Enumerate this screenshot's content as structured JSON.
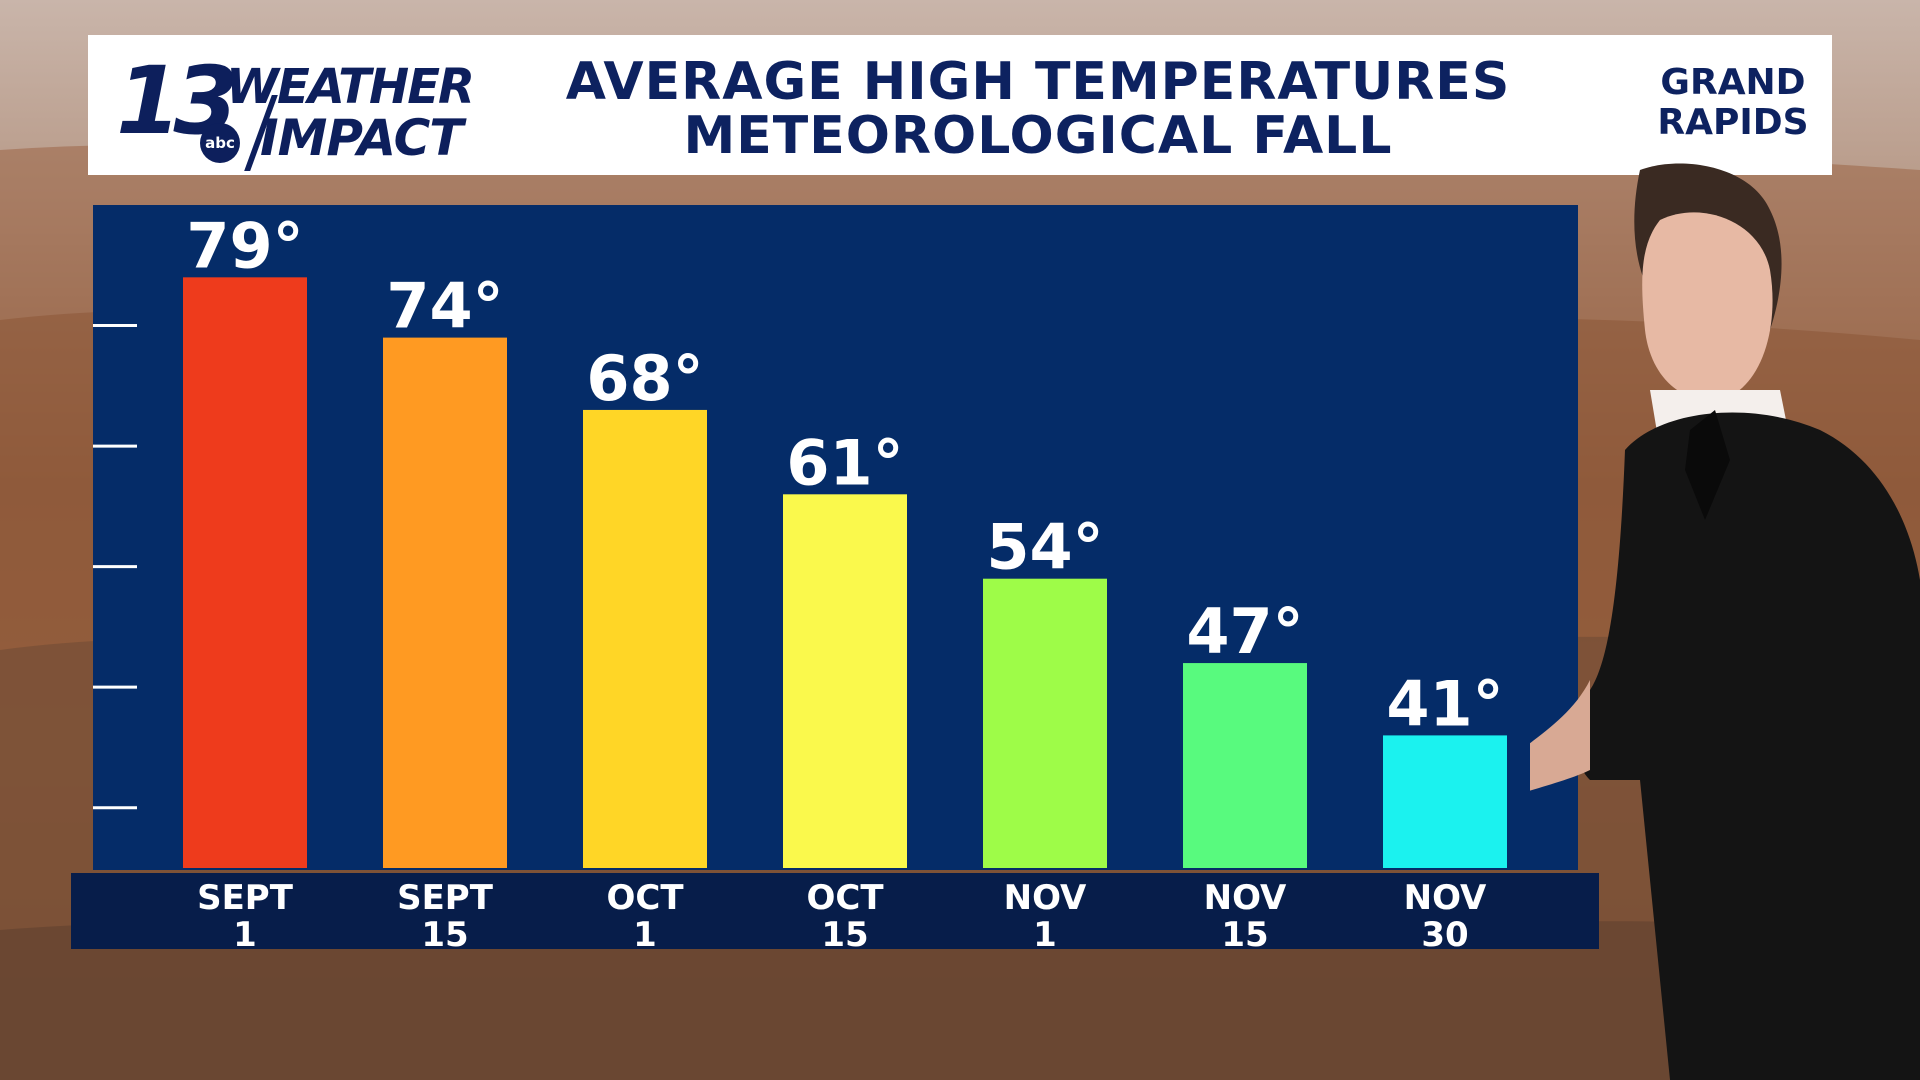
{
  "header": {
    "logo_number": "13",
    "logo_network": "abc",
    "logo_word1": "WEATHER",
    "logo_word2": "IMPACT",
    "title_line1": "AVERAGE HIGH TEMPERATURES",
    "title_line2": "METEOROLOGICAL FALL",
    "location_line1": "GRAND",
    "location_line2": "RAPIDS"
  },
  "colors": {
    "panel": "#052c68",
    "band": "#071d4a",
    "header_text": "#0d2260"
  },
  "chart_data": {
    "type": "bar",
    "categories": [
      "SEPT 1",
      "SEPT 15",
      "OCT 1",
      "OCT 15",
      "NOV 1",
      "NOV 15",
      "NOV 30"
    ],
    "category_lines": [
      [
        "SEPT",
        "1"
      ],
      [
        "SEPT",
        "15"
      ],
      [
        "OCT",
        "1"
      ],
      [
        "OCT",
        "15"
      ],
      [
        "NOV",
        "1"
      ],
      [
        "NOV",
        "15"
      ],
      [
        "NOV",
        "30"
      ]
    ],
    "values": [
      79,
      74,
      68,
      61,
      54,
      47,
      41
    ],
    "data_labels": [
      "79°",
      "74°",
      "68°",
      "61°",
      "54°",
      "47°",
      "41°"
    ],
    "bar_colors": [
      "#ee3b1c",
      "#ff9a22",
      "#ffd626",
      "#faf94c",
      "#9efc48",
      "#58fa7e",
      "#1bf2ef"
    ],
    "ylim": [
      30,
      85
    ],
    "y_ticks": [
      35,
      45,
      55,
      65,
      75
    ],
    "title": "AVERAGE HIGH TEMPERATURES",
    "subtitle": "METEOROLOGICAL FALL",
    "grid": false,
    "legend": "none"
  }
}
